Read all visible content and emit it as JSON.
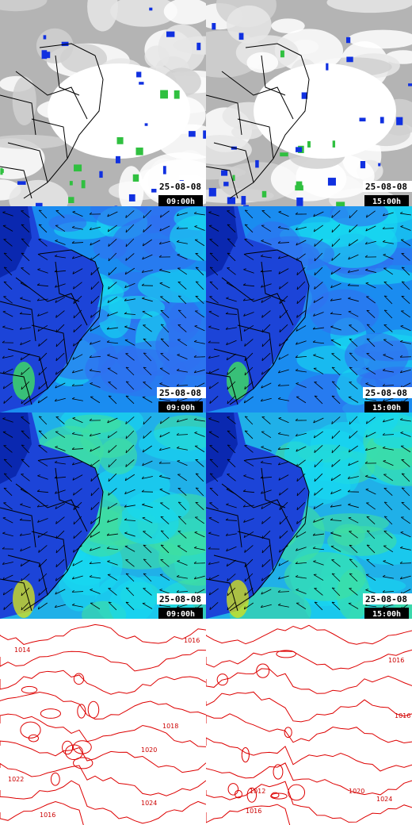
{
  "rows": [
    {
      "cells": [
        {
          "date": "25-08-08",
          "time": "09:00h"
        },
        {
          "date": "25-08-08",
          "time": "15:00h"
        }
      ]
    },
    {
      "cells": [
        {
          "date": "25-08-08",
          "time": "09:00h"
        },
        {
          "date": "25-08-08",
          "time": "15:00h"
        }
      ]
    },
    {
      "cells": [
        {
          "date": "25-08-08",
          "time": "09:00h"
        },
        {
          "date": "25-08-08",
          "time": "15:00h"
        }
      ]
    },
    {
      "cells": [
        {
          "contour_labels": [
            "1014",
            "1016",
            "1018",
            "1020",
            "1022",
            "1024",
            "1016"
          ]
        },
        {
          "contour_labels": [
            "1016",
            "1016",
            "1012",
            "1020",
            "1024",
            "1016"
          ]
        }
      ]
    }
  ]
}
